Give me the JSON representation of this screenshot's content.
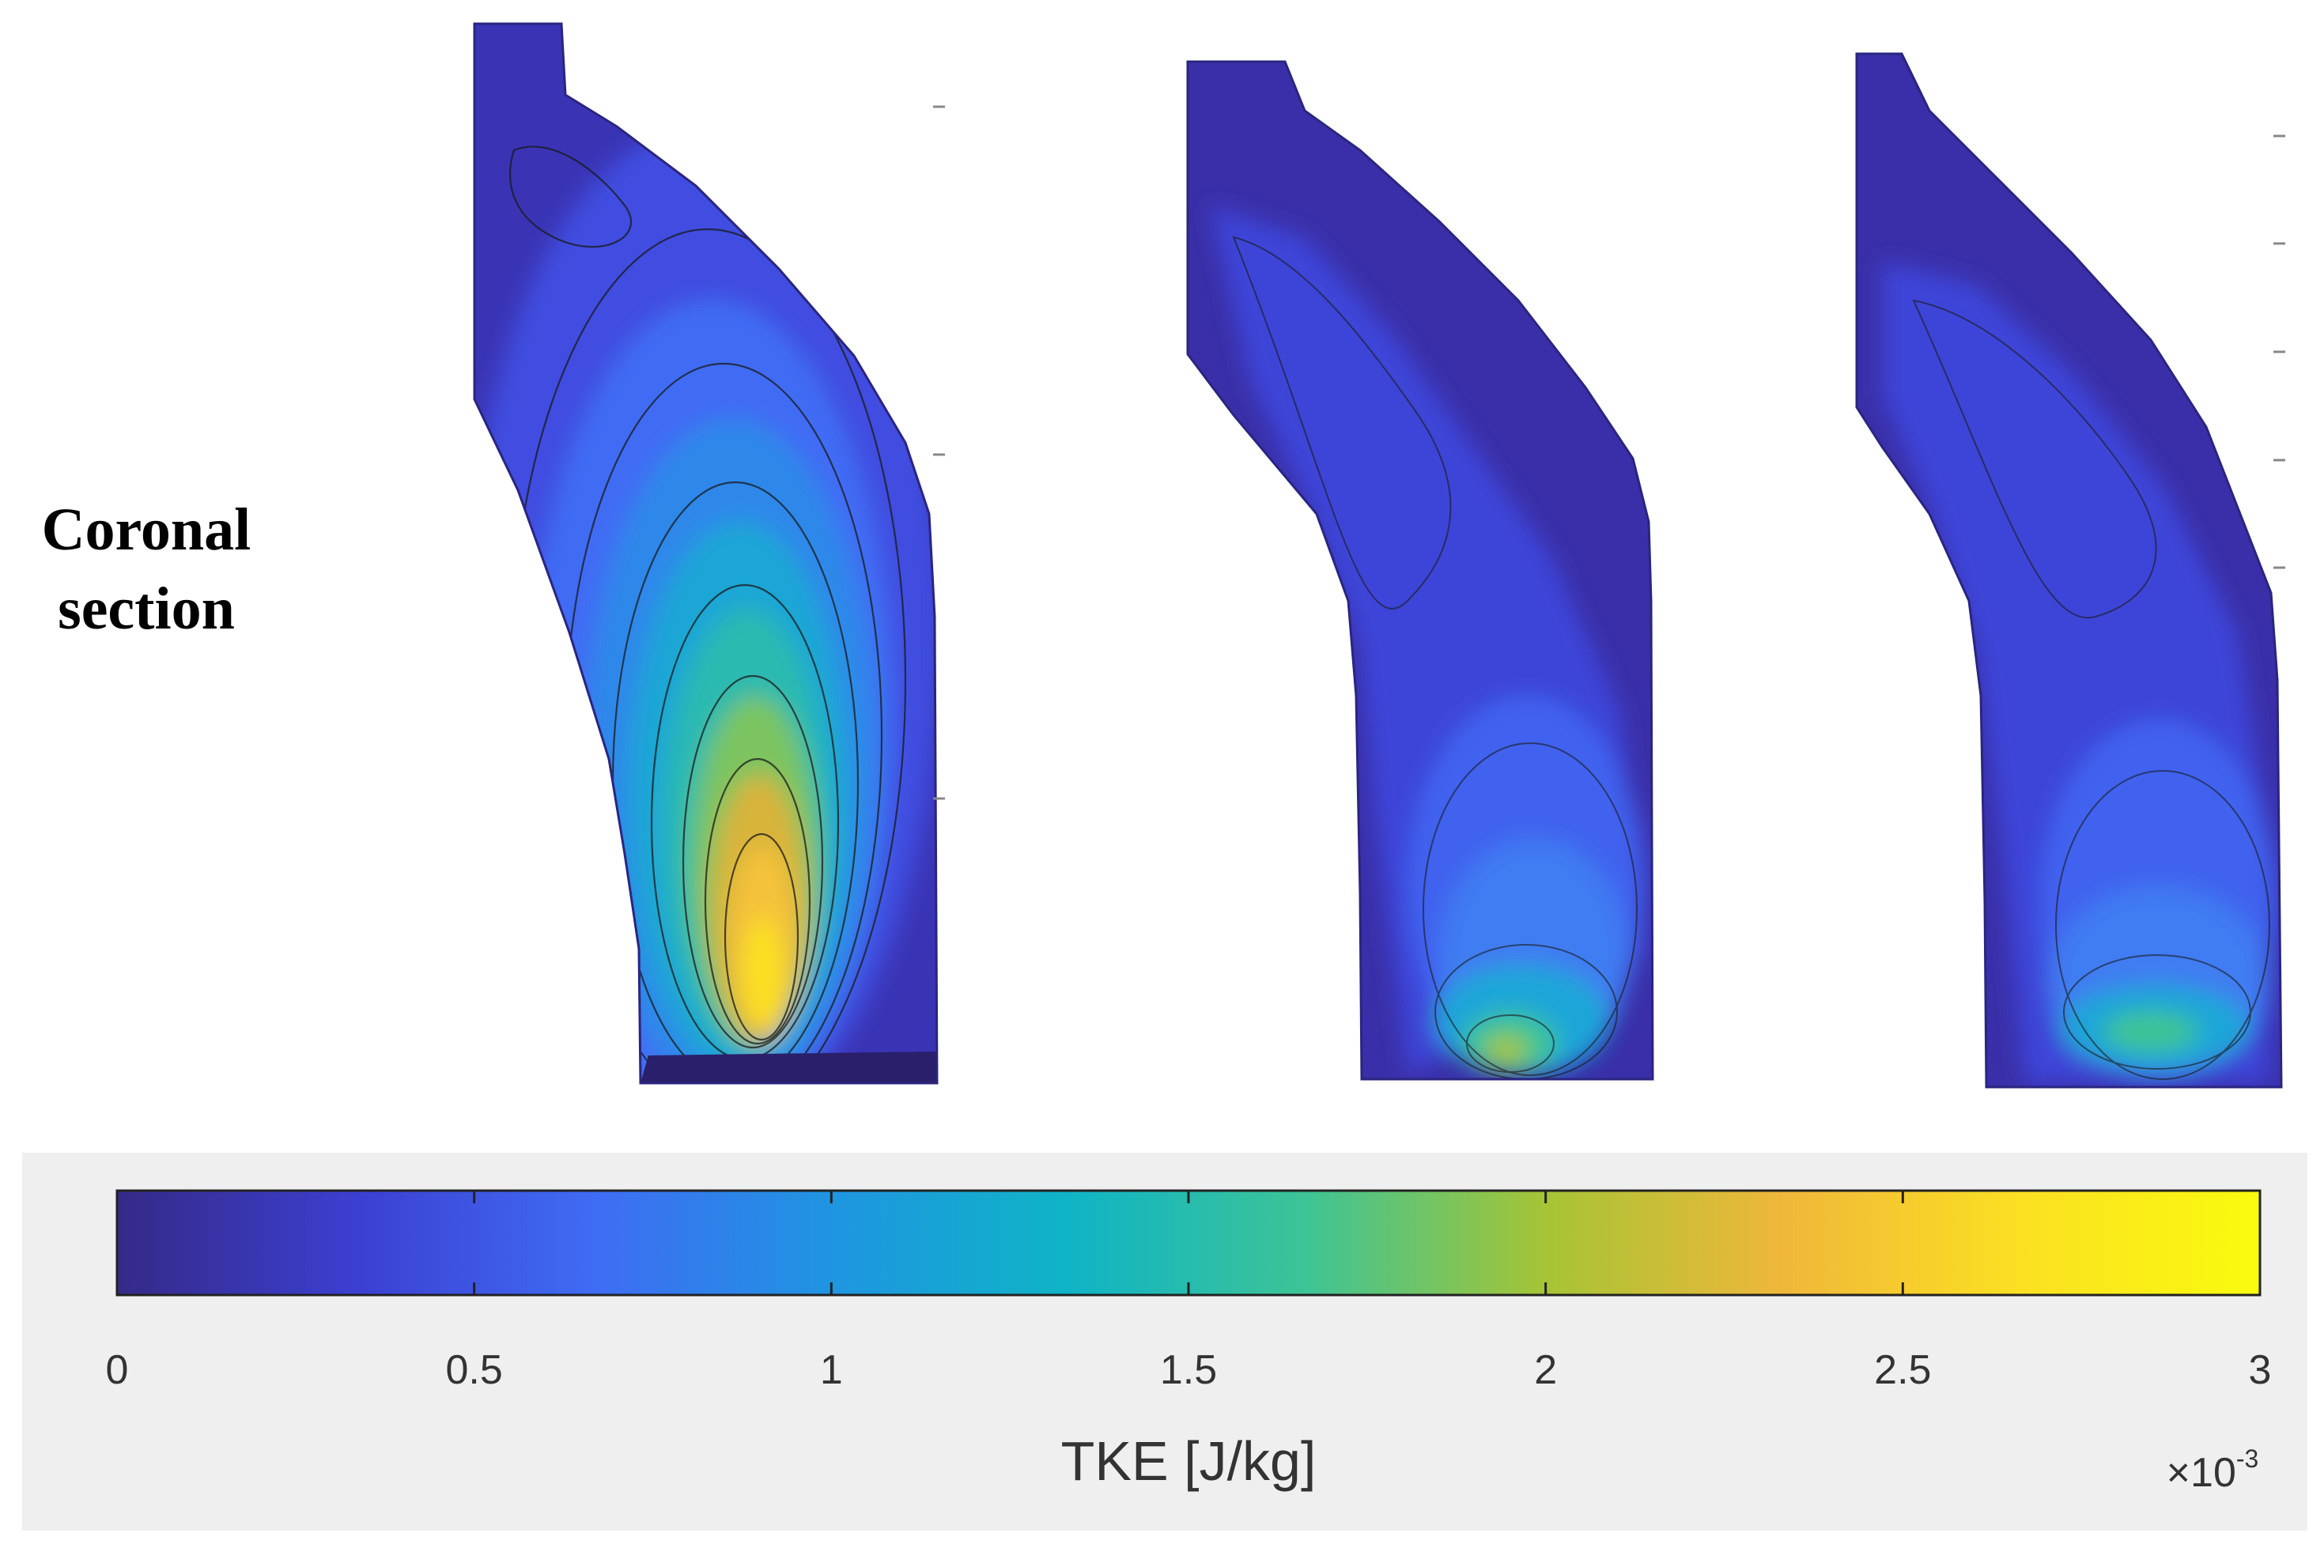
{
  "row_label": {
    "line1": "Coronal",
    "line2": "section"
  },
  "chart_data": {
    "type": "heatmap",
    "panels": [
      {
        "peak_tke": 2.8,
        "hotspot": "near outlet, central jet"
      },
      {
        "peak_tke": 2.1,
        "hotspot": "near outlet"
      },
      {
        "peak_tke": 1.9,
        "hotspot": "near outlet"
      }
    ],
    "colorbar": {
      "label": "TKE [J/kg]",
      "range": [
        0,
        3
      ],
      "ticks": [
        0,
        0.5,
        1,
        1.5,
        2,
        2.5,
        3
      ],
      "tick_labels": [
        "0",
        "0.5",
        "1",
        "1.5",
        "2",
        "2.5",
        "3"
      ],
      "multiplier": "×10",
      "multiplier_exp": "-3",
      "colormap": "parula",
      "stops": [
        "#352a87",
        "#3c3fd1",
        "#3f6cf4",
        "#1f95e1",
        "#0fb4c6",
        "#3ec495",
        "#a6c435",
        "#f0b73a",
        "#fbe022",
        "#f9fb0e"
      ]
    }
  }
}
